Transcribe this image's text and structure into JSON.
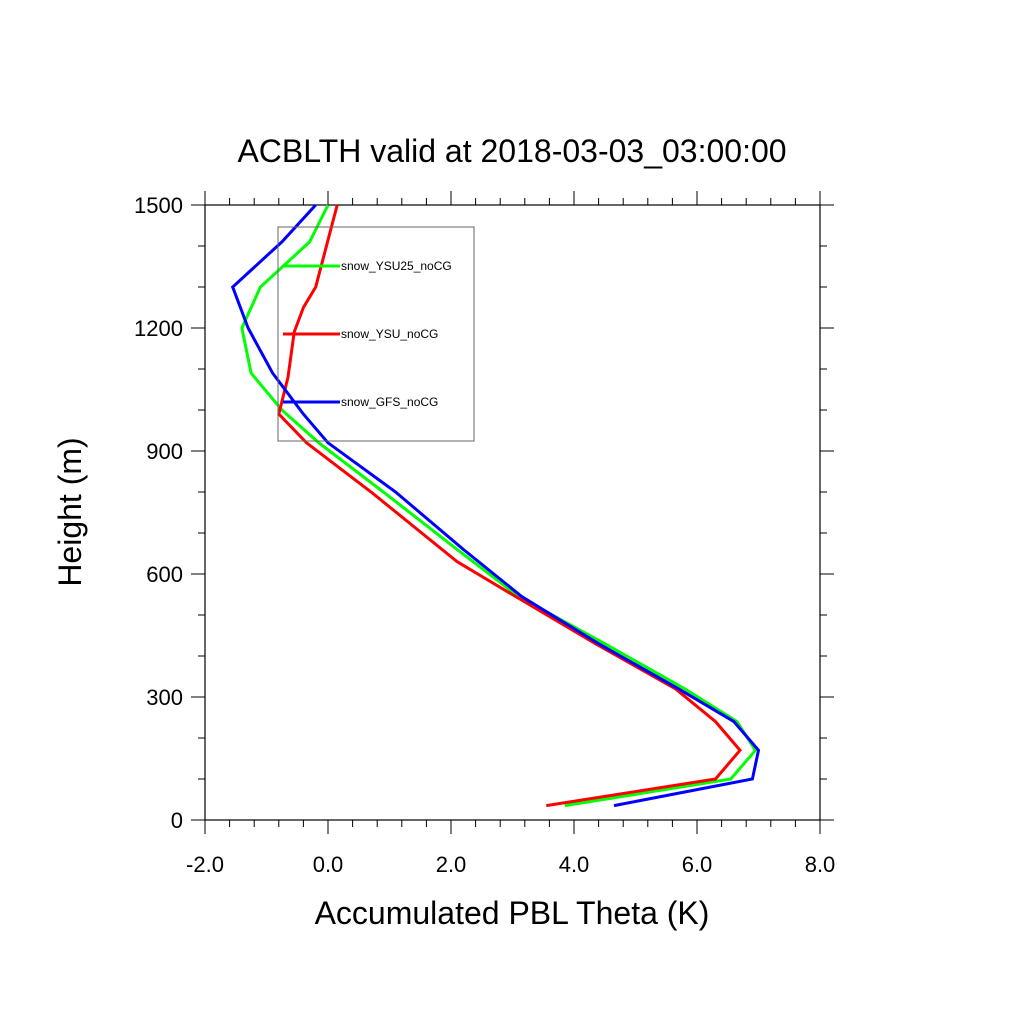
{
  "chart_data": {
    "type": "line",
    "title": "ACBLTH valid at 2018-03-03_03:00:00",
    "xlabel": "Accumulated PBL Theta (K)",
    "ylabel": "Height (m)",
    "xlim": [
      -2.0,
      8.0
    ],
    "ylim": [
      0,
      1500
    ],
    "xticks": [
      -2.0,
      0.0,
      2.0,
      4.0,
      6.0,
      8.0
    ],
    "xtick_labels": [
      "-2.0",
      "0.0",
      "2.0",
      "4.0",
      "6.0",
      "8.0"
    ],
    "yticks": [
      0,
      300,
      600,
      900,
      1200,
      1500
    ],
    "ytick_labels": [
      "0",
      "300",
      "600",
      "900",
      "1200",
      "1500"
    ],
    "grid": false,
    "legend_position": "upper-left inside plot",
    "series": [
      {
        "name": "snow_YSU25_noCG",
        "color": "#00ff00",
        "x": [
          3.85,
          6.55,
          6.95,
          6.65,
          5.8,
          4.5,
          3.1,
          2.1,
          0.9,
          -0.15,
          -0.75,
          -1.25,
          -1.4,
          -1.1,
          -0.3,
          0.0
        ],
        "y": [
          35,
          100,
          170,
          240,
          320,
          430,
          545,
          660,
          800,
          920,
          1000,
          1090,
          1200,
          1300,
          1410,
          1500
        ]
      },
      {
        "name": "snow_YSU_noCG",
        "color": "#ff0000",
        "x": [
          3.55,
          6.3,
          6.7,
          6.3,
          5.65,
          4.35,
          3.05,
          2.1,
          0.7,
          -0.35,
          -0.8,
          -0.65,
          -0.55,
          -0.4,
          -0.2,
          0.15
        ],
        "y": [
          35,
          100,
          170,
          240,
          320,
          430,
          545,
          630,
          800,
          920,
          990,
          1080,
          1190,
          1250,
          1300,
          1500
        ]
      },
      {
        "name": "snow_GFS_noCG",
        "color": "#0000ff",
        "x": [
          4.65,
          6.9,
          7.0,
          6.6,
          5.7,
          4.4,
          3.15,
          2.2,
          1.1,
          0.0,
          -0.4,
          -0.9,
          -1.3,
          -1.55,
          -0.75,
          -0.2
        ],
        "y": [
          35,
          100,
          170,
          240,
          320,
          430,
          545,
          660,
          800,
          920,
          990,
          1090,
          1200,
          1300,
          1410,
          1500
        ]
      }
    ]
  }
}
